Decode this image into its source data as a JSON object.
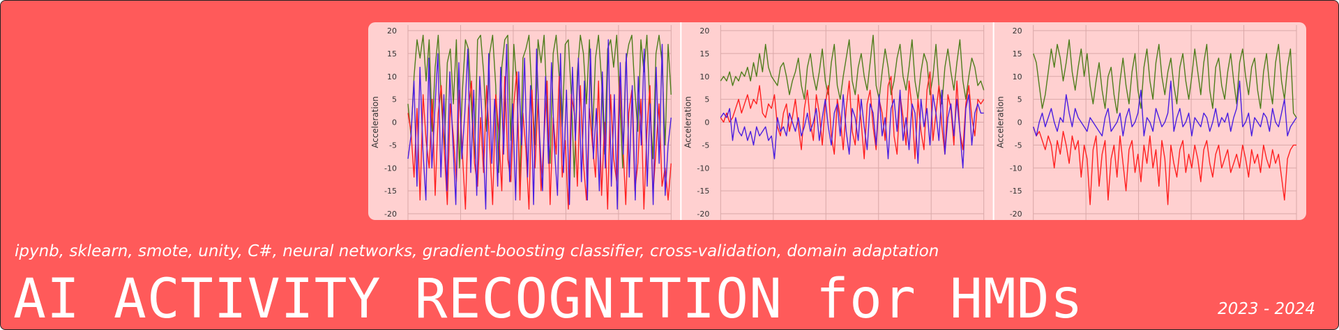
{
  "banner": {
    "subtitle": "ipynb, sklearn, smote, unity, C#, neural networks, gradient-boosting classifier, cross-validation, domain adaptation",
    "title": "AI ACTIVITY RECOGNITION for HMDs",
    "years": "2023 - 2024",
    "background_color": "#ff5a5a",
    "text_color": "#ffffff"
  },
  "chart_data": [
    {
      "type": "line",
      "ylabel": "Acceleration",
      "ylim": [
        -20,
        20
      ],
      "y_ticks": [
        20,
        15,
        10,
        5,
        0,
        -5,
        -10,
        -15,
        -20
      ],
      "grid": true,
      "series": [
        {
          "color": "#4f7d1c",
          "values": [
            4,
            -3,
            10,
            18,
            14,
            19,
            9,
            18,
            -2,
            12,
            19,
            5,
            -6,
            13,
            16,
            4,
            18,
            -10,
            7,
            18,
            16,
            3,
            -8,
            18,
            19,
            11,
            -2,
            15,
            19,
            8,
            -11,
            12,
            18,
            19,
            -4,
            17,
            8,
            -13,
            14,
            16,
            19,
            6,
            -5,
            18,
            13,
            19,
            3,
            -9,
            15,
            19,
            10,
            -1,
            17,
            18,
            6,
            -12,
            11,
            19,
            15,
            4,
            18,
            -3,
            14,
            19,
            9,
            -7,
            16,
            18,
            12,
            19,
            5,
            -10,
            13,
            17,
            19,
            7,
            -2,
            18,
            11,
            19,
            3,
            -8,
            15,
            19,
            13,
            -5,
            17,
            6
          ]
        },
        {
          "color": "#ff2020",
          "values": [
            2,
            -2,
            -12,
            3,
            -17,
            6,
            -4,
            -10,
            5,
            -16,
            2,
            8,
            -6,
            -18,
            4,
            -3,
            -13,
            7,
            -7,
            -19,
            3,
            9,
            -9,
            -14,
            1,
            -11,
            8,
            -5,
            -18,
            6,
            -2,
            -15,
            10,
            -8,
            -13,
            4,
            11,
            -17,
            2,
            -6,
            -19,
            7,
            -10,
            5,
            -15,
            -3,
            9,
            -18,
            1,
            -7,
            10,
            -12,
            -4,
            -19,
            6,
            2,
            -14,
            8,
            -9,
            -17,
            3,
            -5,
            -12,
            9,
            -16,
            0,
            -19,
            6,
            -8,
            -13,
            10,
            -4,
            -18,
            2,
            7,
            -15,
            -9,
            5,
            -19,
            -2,
            8,
            -16,
            -6,
            4,
            -14,
            -10,
            -17,
            -9
          ]
        },
        {
          "color": "#4a1ee0",
          "values": [
            -8,
            -3,
            9,
            -14,
            12,
            -6,
            -17,
            14,
            -10,
            3,
            15,
            -12,
            6,
            -15,
            11,
            -4,
            -18,
            13,
            -8,
            2,
            16,
            -11,
            7,
            -16,
            10,
            -2,
            -19,
            15,
            -9,
            5,
            -14,
            12,
            -7,
            17,
            -13,
            4,
            -17,
            11,
            -5,
            14,
            -12,
            8,
            -18,
            16,
            -3,
            -15,
            10,
            -9,
            13,
            -6,
            -16,
            15,
            -11,
            7,
            -18,
            12,
            -4,
            14,
            -13,
            9,
            -17,
            16,
            -8,
            3,
            -15,
            11,
            -10,
            18,
            -14,
            6,
            -19,
            13,
            -7,
            15,
            -12,
            8,
            -17,
            10,
            -5,
            16,
            -14,
            4,
            -18,
            12,
            -9,
            17,
            -16,
            -5,
            1
          ]
        }
      ]
    },
    {
      "type": "line",
      "ylabel": "Acceleration",
      "ylim": [
        -20,
        20
      ],
      "y_ticks": [
        20,
        15,
        10,
        5,
        0,
        -5,
        -10,
        -15,
        -20
      ],
      "grid": true,
      "series": [
        {
          "color": "#4f7d1c",
          "values": [
            9,
            10,
            9,
            11,
            8,
            10,
            9,
            11,
            10,
            12,
            9,
            13,
            10,
            15,
            11,
            17,
            12,
            10,
            9,
            8,
            12,
            13,
            10,
            6,
            9,
            11,
            14,
            8,
            5,
            12,
            15,
            10,
            7,
            11,
            16,
            9,
            6,
            13,
            17,
            8,
            5,
            10,
            14,
            18,
            9,
            6,
            12,
            15,
            10,
            7,
            13,
            19,
            8,
            5,
            11,
            16,
            12,
            6,
            9,
            14,
            17,
            10,
            7,
            12,
            18,
            9,
            5,
            11,
            15,
            13,
            6,
            10,
            17,
            8,
            4,
            12,
            16,
            11,
            7,
            13,
            18,
            9,
            5,
            10,
            14,
            12,
            8,
            9,
            7
          ]
        },
        {
          "color": "#ff2020",
          "values": [
            1,
            0,
            2,
            0,
            1,
            3,
            5,
            2,
            4,
            6,
            3,
            5,
            4,
            8,
            2,
            1,
            4,
            3,
            6,
            -1,
            -3,
            2,
            4,
            -2,
            1,
            5,
            -1,
            -6,
            3,
            7,
            0,
            -4,
            6,
            2,
            -5,
            4,
            8,
            -3,
            -7,
            5,
            1,
            -6,
            3,
            9,
            -2,
            -5,
            6,
            0,
            -8,
            4,
            7,
            -1,
            -6,
            5,
            2,
            -4,
            8,
            10,
            -3,
            -7,
            6,
            1,
            -5,
            9,
            3,
            -8,
            5,
            -2,
            -6,
            7,
            11,
            -4,
            2,
            8,
            -1,
            -7,
            6,
            3,
            -5,
            9,
            -2,
            -6,
            4,
            8,
            1,
            -3,
            5,
            4,
            5
          ]
        },
        {
          "color": "#4a1ee0",
          "values": [
            1,
            2,
            1,
            3,
            -4,
            1,
            -2,
            -3,
            -1,
            -4,
            -2,
            -5,
            -1,
            -3,
            -2,
            -1,
            -4,
            -3,
            -8,
            1,
            -2,
            -1,
            -3,
            2,
            0,
            -2,
            1,
            -3,
            -1,
            2,
            -2,
            0,
            3,
            -4,
            1,
            5,
            -1,
            -5,
            2,
            4,
            -3,
            6,
            -2,
            -7,
            3,
            1,
            -4,
            5,
            -1,
            -6,
            4,
            2,
            -5,
            6,
            -3,
            1,
            -8,
            3,
            5,
            -2,
            7,
            -4,
            1,
            -6,
            4,
            2,
            -9,
            5,
            -1,
            3,
            -5,
            6,
            2,
            -4,
            7,
            -7,
            1,
            4,
            -3,
            5,
            -2,
            -10,
            3,
            6,
            -5,
            2,
            4,
            2,
            2
          ]
        }
      ]
    },
    {
      "type": "line",
      "ylabel": "Acceleration",
      "ylim": [
        -20,
        20
      ],
      "y_ticks": [
        20,
        15,
        10,
        5,
        0,
        -5,
        -10,
        -15,
        -20
      ],
      "grid": true,
      "series": [
        {
          "color": "#4f7d1c",
          "values": [
            15,
            13,
            8,
            3,
            6,
            11,
            16,
            12,
            17,
            14,
            9,
            13,
            18,
            11,
            7,
            12,
            16,
            10,
            15,
            8,
            4,
            9,
            13,
            7,
            3,
            10,
            12,
            6,
            2,
            9,
            14,
            8,
            4,
            11,
            15,
            7,
            3,
            12,
            16,
            9,
            5,
            13,
            17,
            10,
            6,
            11,
            14,
            8,
            4,
            12,
            15,
            9,
            5,
            10,
            16,
            11,
            6,
            13,
            17,
            7,
            3,
            12,
            14,
            8,
            5,
            11,
            15,
            9,
            4,
            13,
            16,
            10,
            6,
            12,
            14,
            7,
            3,
            11,
            15,
            8,
            4,
            13,
            17,
            9,
            5,
            12,
            16,
            2,
            1
          ]
        },
        {
          "color": "#ff2020",
          "values": [
            -1,
            -3,
            -2,
            -4,
            -6,
            -3,
            -5,
            -10,
            -4,
            -7,
            -2,
            -5,
            -9,
            -3,
            -6,
            -4,
            -12,
            -5,
            -8,
            -18,
            -6,
            -3,
            -14,
            -7,
            -4,
            -17,
            -8,
            -5,
            -12,
            -3,
            -9,
            -15,
            -6,
            -4,
            -11,
            -7,
            -13,
            -5,
            -9,
            -3,
            -10,
            -6,
            -14,
            -4,
            -8,
            -18,
            -5,
            -9,
            -12,
            -6,
            -4,
            -11,
            -7,
            -10,
            -5,
            -8,
            -13,
            -6,
            -4,
            -9,
            -12,
            -7,
            -5,
            -10,
            -8,
            -6,
            -11,
            -9,
            -7,
            -10,
            -5,
            -8,
            -12,
            -6,
            -9,
            -7,
            -11,
            -5,
            -8,
            -10,
            -6,
            -9,
            -7,
            -12,
            -17,
            -8,
            -6,
            -5,
            -5
          ]
        },
        {
          "color": "#4a1ee0",
          "values": [
            -1,
            -3,
            0,
            2,
            -1,
            1,
            3,
            0,
            -2,
            1,
            0,
            6,
            2,
            -1,
            3,
            1,
            0,
            -1,
            -2,
            1,
            0,
            -1,
            -2,
            -3,
            1,
            3,
            -2,
            -1,
            0,
            2,
            -3,
            1,
            3,
            -1,
            0,
            2,
            7,
            -3,
            1,
            0,
            -2,
            3,
            1,
            -1,
            0,
            2,
            9,
            -2,
            1,
            3,
            -1,
            0,
            2,
            -3,
            1,
            0,
            -1,
            2,
            1,
            -2,
            0,
            3,
            -1,
            1,
            0,
            2,
            -2,
            1,
            3,
            9,
            -1,
            0,
            2,
            -3,
            1,
            0,
            -1,
            2,
            1,
            -2,
            3,
            0,
            -1,
            2,
            5,
            -3,
            -1,
            0,
            1
          ]
        }
      ]
    }
  ]
}
